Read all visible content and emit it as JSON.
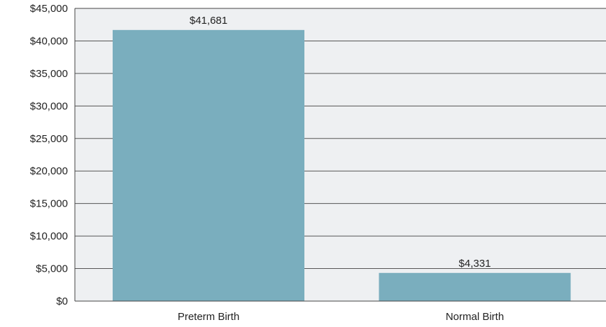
{
  "chart_data": {
    "type": "bar",
    "categories": [
      "Preterm Birth",
      "Normal Birth"
    ],
    "values": [
      41681,
      4331
    ],
    "data_labels": [
      "$41,681",
      "$4,331"
    ],
    "ylim": [
      0,
      45000
    ],
    "yticks": [
      0,
      5000,
      10000,
      15000,
      20000,
      25000,
      30000,
      35000,
      40000,
      45000
    ],
    "ytick_labels": [
      "$0",
      "$5,000",
      "$10,000",
      "$15,000",
      "$20,000",
      "$25,000",
      "$30,000",
      "$35,000",
      "$40,000",
      "$45,000"
    ],
    "title": "",
    "xlabel": "",
    "ylabel": "",
    "grid": true,
    "legend": "none",
    "colors": {
      "bar": "#7aaebe",
      "plot_background": "#eef0f2",
      "grid": "#555555",
      "axis": "#444444"
    }
  }
}
